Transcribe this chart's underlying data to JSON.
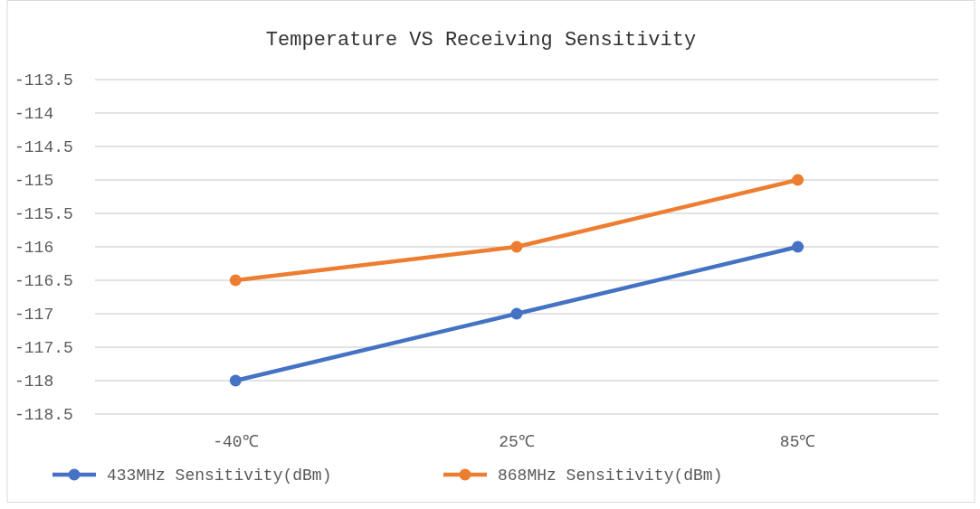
{
  "chart_data": {
    "type": "line",
    "title": "Temperature VS Receiving Sensitivity",
    "categories": [
      "-40℃",
      "25℃",
      "85℃"
    ],
    "series": [
      {
        "name": "433MHz Sensitivity(dBm)",
        "color": "#4472c4",
        "values": [
          -118,
          -117,
          -116
        ]
      },
      {
        "name": "868MHz Sensitivity(dBm)",
        "color": "#ed7d31",
        "values": [
          -116.5,
          -116,
          -115
        ]
      }
    ],
    "ylim": [
      -118.5,
      -113.5
    ],
    "yticks": [
      -118.5,
      -118,
      -117.5,
      -117,
      -116.5,
      -116,
      -115.5,
      -115,
      -114.5,
      -114,
      -113.5
    ],
    "grid": "y",
    "legend": "bottom",
    "marker": "circle",
    "line_style": "solid"
  }
}
